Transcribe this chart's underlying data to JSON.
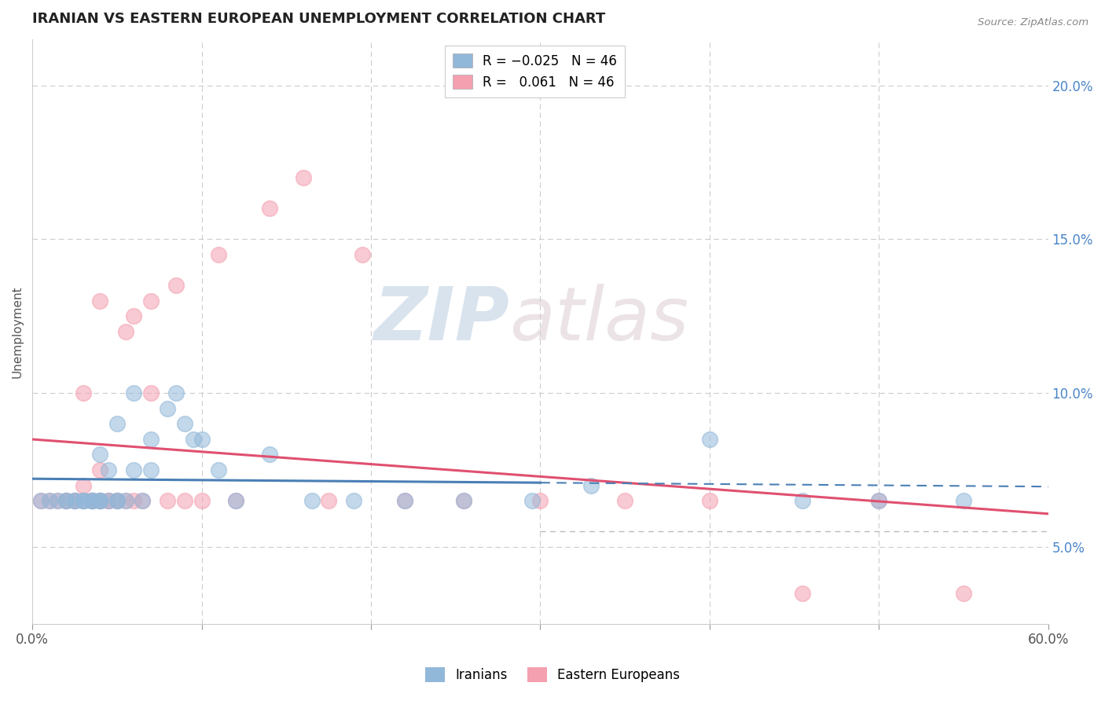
{
  "title": "IRANIAN VS EASTERN EUROPEAN UNEMPLOYMENT CORRELATION CHART",
  "source": "Source: ZipAtlas.com",
  "ylabel": "Unemployment",
  "xlim": [
    0.0,
    0.6
  ],
  "ylim": [
    0.025,
    0.215
  ],
  "yticks": [
    0.05,
    0.1,
    0.15,
    0.2
  ],
  "ytick_labels": [
    "5.0%",
    "10.0%",
    "15.0%",
    "20.0%"
  ],
  "xtick_labels_shown": [
    "0.0%",
    "60.0%"
  ],
  "iranian_color": "#92b8d9",
  "eastern_color": "#f4a0b0",
  "iranians_x": [
    0.005,
    0.01,
    0.015,
    0.02,
    0.02,
    0.025,
    0.025,
    0.03,
    0.03,
    0.03,
    0.035,
    0.035,
    0.035,
    0.04,
    0.04,
    0.04,
    0.04,
    0.045,
    0.045,
    0.05,
    0.05,
    0.05,
    0.055,
    0.06,
    0.06,
    0.065,
    0.07,
    0.07,
    0.08,
    0.085,
    0.09,
    0.095,
    0.1,
    0.11,
    0.12,
    0.14,
    0.165,
    0.19,
    0.22,
    0.255,
    0.295,
    0.33,
    0.4,
    0.455,
    0.5,
    0.55
  ],
  "iranians_y": [
    0.065,
    0.065,
    0.065,
    0.065,
    0.065,
    0.065,
    0.065,
    0.065,
    0.065,
    0.065,
    0.065,
    0.065,
    0.065,
    0.065,
    0.065,
    0.065,
    0.08,
    0.065,
    0.075,
    0.065,
    0.065,
    0.09,
    0.065,
    0.075,
    0.1,
    0.065,
    0.075,
    0.085,
    0.095,
    0.1,
    0.09,
    0.085,
    0.085,
    0.075,
    0.065,
    0.08,
    0.065,
    0.065,
    0.065,
    0.065,
    0.065,
    0.07,
    0.085,
    0.065,
    0.065,
    0.065
  ],
  "eastern_x": [
    0.005,
    0.01,
    0.015,
    0.02,
    0.02,
    0.025,
    0.025,
    0.03,
    0.03,
    0.03,
    0.035,
    0.035,
    0.035,
    0.04,
    0.04,
    0.04,
    0.04,
    0.045,
    0.045,
    0.05,
    0.05,
    0.055,
    0.055,
    0.06,
    0.06,
    0.065,
    0.07,
    0.07,
    0.08,
    0.085,
    0.09,
    0.1,
    0.11,
    0.12,
    0.14,
    0.16,
    0.175,
    0.195,
    0.22,
    0.255,
    0.3,
    0.35,
    0.4,
    0.455,
    0.5,
    0.55
  ],
  "eastern_y": [
    0.065,
    0.065,
    0.065,
    0.065,
    0.065,
    0.065,
    0.065,
    0.065,
    0.07,
    0.1,
    0.065,
    0.065,
    0.065,
    0.065,
    0.065,
    0.075,
    0.13,
    0.065,
    0.065,
    0.065,
    0.065,
    0.12,
    0.065,
    0.065,
    0.125,
    0.065,
    0.1,
    0.13,
    0.065,
    0.135,
    0.065,
    0.065,
    0.145,
    0.065,
    0.16,
    0.17,
    0.065,
    0.145,
    0.065,
    0.065,
    0.065,
    0.065,
    0.065,
    0.035,
    0.065,
    0.035
  ],
  "watermark_zip": "ZIP",
  "watermark_atlas": "atlas"
}
